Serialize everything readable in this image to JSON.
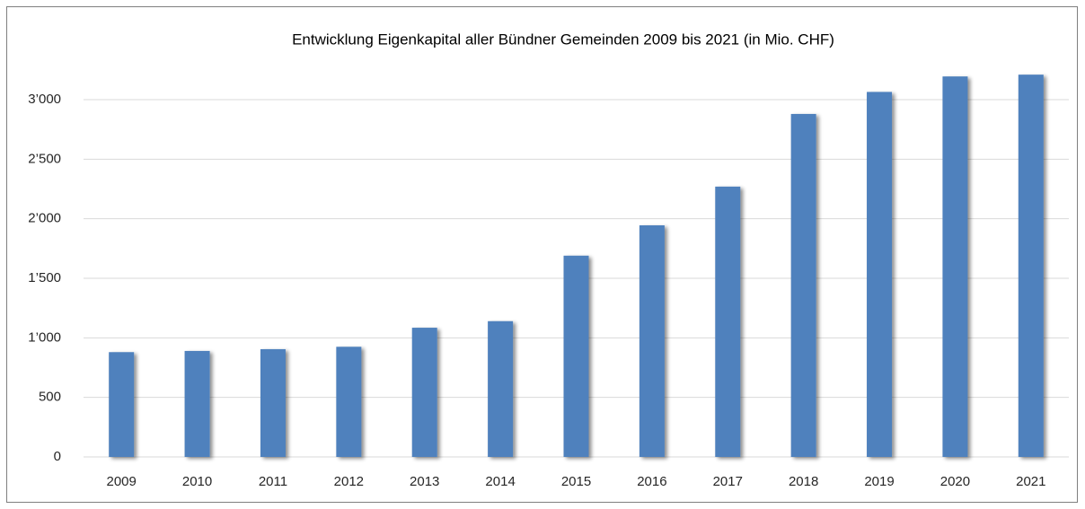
{
  "chart_data": {
    "type": "bar",
    "title": "Entwicklung Eigenkapital aller Bündner Gemeinden 2009 bis 2021 (in Mio. CHF)",
    "categories": [
      "2009",
      "2010",
      "2011",
      "2012",
      "2013",
      "2014",
      "2015",
      "2016",
      "2017",
      "2018",
      "2019",
      "2020",
      "2021"
    ],
    "values": [
      880,
      890,
      905,
      925,
      1085,
      1140,
      1690,
      1945,
      2270,
      2880,
      3065,
      3195,
      3210
    ],
    "color": "#4f81bd",
    "ylim": [
      0,
      3250
    ],
    "yticks": [
      0,
      500,
      {
        "value": 1000,
        "label": "1’000"
      },
      {
        "value": 1500,
        "label": "1’500"
      },
      {
        "value": 2000,
        "label": "2’000"
      },
      {
        "value": 2500,
        "label": "2’500"
      },
      {
        "value": 3000,
        "label": "3’000"
      }
    ],
    "grid": true
  }
}
